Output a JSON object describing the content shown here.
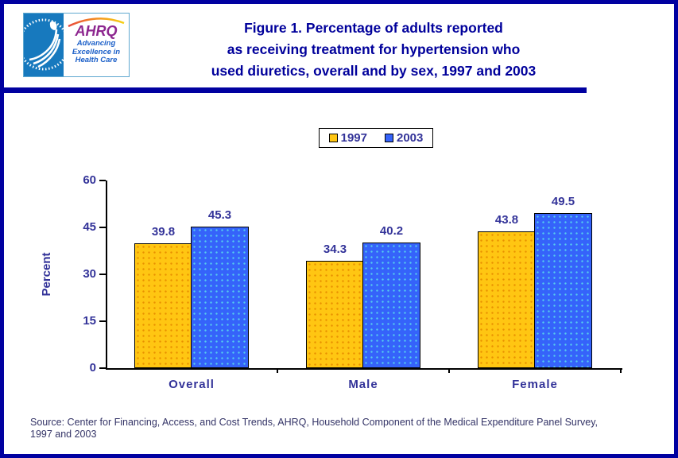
{
  "frame": {
    "border_color": "#0000A0"
  },
  "header": {
    "logo": {
      "hhs_emblem": "hhs-eagle-seal",
      "hhs_bg_color": "#1779BE",
      "ahrq_acronym": "AHRQ",
      "ahrq_color": "#8D268F",
      "tagline_lines": [
        "Advancing",
        "Excellence in",
        "Health Care"
      ],
      "tagline_color": "#1B5FC8"
    },
    "title_lines": [
      "Figure 1. Percentage of adults reported",
      "as receiving treatment for hypertension who",
      "used diuretics, overall and by sex, 1997 and 2003"
    ],
    "title_color": "#00009B"
  },
  "chart_data": {
    "type": "bar",
    "title": "",
    "categories": [
      "Overall",
      "Male",
      "Female"
    ],
    "series": [
      {
        "name": "1997",
        "color": "#FFC612",
        "dot_color": "#E89000",
        "values": [
          39.8,
          34.3,
          43.8
        ]
      },
      {
        "name": "2003",
        "color": "#3563FA",
        "dot_color": "#55CCEE",
        "values": [
          45.3,
          40.2,
          49.5
        ]
      }
    ],
    "ylabel": "Percent",
    "yticks": [
      0,
      15,
      30,
      45,
      60
    ],
    "ylim": [
      0,
      60
    ],
    "grid": false,
    "legend_position": "top-center",
    "label_color": "#333399",
    "data_labels": true
  },
  "source_lines": [
    "Source: Center for Financing, Access, and Cost Trends, AHRQ, Household Component of the Medical Expenditure Panel Survey,",
    "1997 and 2003"
  ]
}
